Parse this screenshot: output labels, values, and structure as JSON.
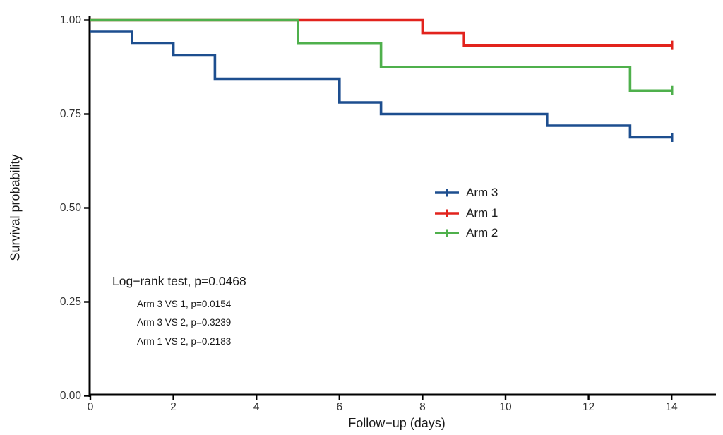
{
  "chart_data": {
    "type": "line",
    "subtype": "kaplan-meier-step",
    "title": "",
    "xlabel": "Follow−up (days)",
    "ylabel": "Survival probability",
    "xlim": [
      0,
      14
    ],
    "ylim": [
      0.0,
      1.0
    ],
    "grid": false,
    "x_ticks": [
      0,
      2,
      4,
      6,
      8,
      10,
      12,
      14
    ],
    "y_ticks": [
      {
        "value": 0.0,
        "label": "0.00"
      },
      {
        "value": 0.25,
        "label": "0.25"
      },
      {
        "value": 0.5,
        "label": "0.50"
      },
      {
        "value": 0.75,
        "label": "0.75"
      },
      {
        "value": 1.0,
        "label": "1.00"
      }
    ],
    "series": [
      {
        "name": "Arm 3",
        "color": "#1d4e8f",
        "start_survival": 0.969,
        "steps_day_survival": [
          [
            1,
            0.938
          ],
          [
            2,
            0.906
          ],
          [
            3,
            0.844
          ],
          [
            6,
            0.781
          ],
          [
            7,
            0.75
          ],
          [
            11,
            0.719
          ],
          [
            13,
            0.688
          ]
        ],
        "end_day": 14,
        "censor_tick_at_end": true
      },
      {
        "name": "Arm 1",
        "color": "#e2231d",
        "start_survival": 1.0,
        "steps_day_survival": [
          [
            8,
            0.966
          ],
          [
            9,
            0.933
          ]
        ],
        "end_day": 14,
        "censor_tick_at_end": true
      },
      {
        "name": "Arm 2",
        "color": "#4fb04c",
        "start_survival": 1.0,
        "steps_day_survival": [
          [
            5,
            0.9375
          ],
          [
            7,
            0.875
          ],
          [
            13,
            0.8125
          ]
        ],
        "end_day": 14,
        "censor_tick_at_end": true
      }
    ],
    "legend": {
      "position": "center-right",
      "items": [
        {
          "label": "Arm 3",
          "color": "#1d4e8f"
        },
        {
          "label": "Arm 1",
          "color": "#e2231d"
        },
        {
          "label": "Arm 2",
          "color": "#4fb04c"
        }
      ]
    },
    "annotations": {
      "logrank": "Log−rank test, p=0.0468",
      "pairwise": [
        "Arm 3 VS 1, p=0.0154",
        "Arm 3 VS 2, p=0.3239",
        "Arm 1 VS 2, p=0.2183"
      ]
    },
    "colors": {
      "axis": "#000000",
      "tick_text": "#333333",
      "label_text": "#1a1a1a"
    }
  }
}
